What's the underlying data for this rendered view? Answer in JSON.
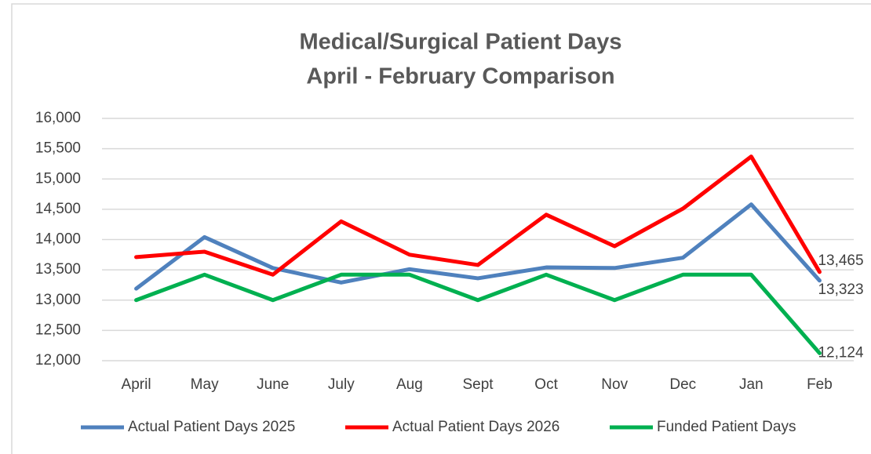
{
  "chart_data": {
    "type": "line",
    "title": "Medical/Surgical Patient Days",
    "subtitle": "April - February Comparison",
    "categories": [
      "April",
      "May",
      "June",
      "July",
      "Aug",
      "Sept",
      "Oct",
      "Nov",
      "Dec",
      "Jan",
      "Feb"
    ],
    "series": [
      {
        "name": "Actual Patient Days 2025",
        "color": "#4f81bd",
        "values": [
          13190,
          14040,
          13530,
          13290,
          13510,
          13360,
          13540,
          13530,
          13700,
          14580,
          13323
        ],
        "value_labels": [
          null,
          null,
          null,
          null,
          null,
          null,
          null,
          null,
          null,
          null,
          "13,323"
        ]
      },
      {
        "name": "Actual Patient Days 2026",
        "color": "#ff0000",
        "values": [
          13710,
          13800,
          13420,
          14300,
          13750,
          13580,
          14410,
          13890,
          14510,
          15370,
          13465
        ],
        "value_labels": [
          null,
          null,
          null,
          null,
          null,
          null,
          null,
          null,
          null,
          null,
          "13,465"
        ]
      },
      {
        "name": "Funded Patient Days",
        "color": "#00b050",
        "values": [
          13000,
          13420,
          13000,
          13420,
          13420,
          13000,
          13420,
          13000,
          13420,
          13420,
          12124
        ],
        "value_labels": [
          null,
          null,
          null,
          null,
          null,
          null,
          null,
          null,
          null,
          null,
          "12,124"
        ]
      }
    ],
    "ylim": [
      12000,
      16000
    ],
    "yticks": [
      {
        "value": 12000,
        "label": "12,000"
      },
      {
        "value": 12500,
        "label": "12,500"
      },
      {
        "value": 13000,
        "label": "13,000"
      },
      {
        "value": 13500,
        "label": "13,500"
      },
      {
        "value": 14000,
        "label": "14,000"
      },
      {
        "value": 14500,
        "label": "14,500"
      },
      {
        "value": 15000,
        "label": "15,000"
      },
      {
        "value": 15500,
        "label": "15,500"
      },
      {
        "value": 16000,
        "label": "16,000"
      }
    ],
    "grid": true,
    "legend": "bottom"
  }
}
